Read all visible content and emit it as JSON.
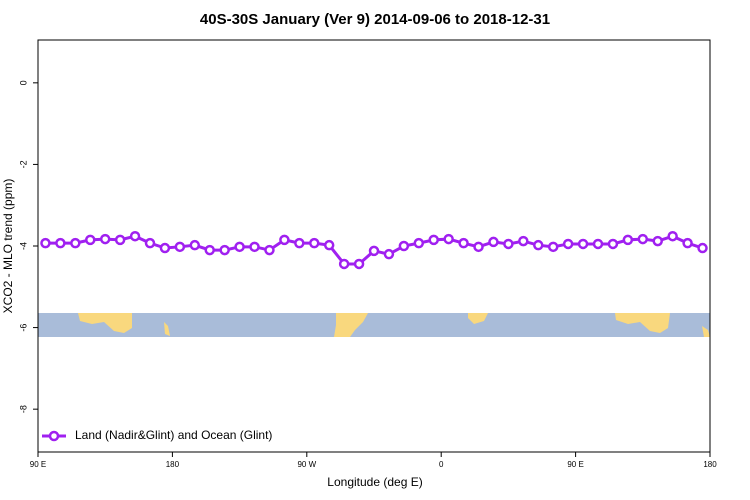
{
  "chart_data": {
    "type": "line",
    "title": "40S-30S January (Ver 9)   2014-09-06 to 2018-12-31",
    "x_label": "Longitude (deg E)",
    "y_label": "XCO2 - MLO trend (ppm)",
    "x": [
      95,
      105,
      115,
      125,
      135,
      145,
      155,
      165,
      175,
      185,
      195,
      205,
      215,
      225,
      235,
      245,
      255,
      265,
      275,
      285,
      295,
      305,
      315,
      325,
      335,
      345,
      355,
      365,
      375,
      385,
      395,
      405,
      415,
      425,
      435,
      445,
      455,
      465,
      475,
      485,
      495,
      505,
      515,
      525,
      535
    ],
    "series": [
      {
        "name": "Land (Nadir&Glint) and Ocean (Glint)",
        "color": "#a020f0",
        "values": [
          -3.93,
          -3.93,
          -3.93,
          -3.85,
          -3.83,
          -3.85,
          -3.76,
          -3.93,
          -4.05,
          -4.02,
          -3.98,
          -4.1,
          -4.1,
          -4.02,
          -4.02,
          -4.1,
          -3.85,
          -3.93,
          -3.93,
          -3.98,
          -4.44,
          -4.44,
          -4.12,
          -4.2,
          -4.0,
          -3.93,
          -3.85,
          -3.83,
          -3.93,
          -4.02,
          -3.9,
          -3.95,
          -3.88,
          -3.98,
          -4.02,
          -3.95,
          -3.95,
          -3.95,
          -3.95,
          -3.85,
          -3.83,
          -3.88,
          -3.76,
          -3.93,
          -4.05
        ]
      }
    ],
    "xlim": [
      90,
      540
    ],
    "xticks": [
      {
        "value": 90,
        "label": "90 E"
      },
      180,
      {
        "value": 270,
        "label": "90 W"
      },
      {
        "value": 360,
        "label": "0"
      },
      {
        "value": 450,
        "label": "90 E"
      },
      {
        "value": 540,
        "label": "180"
      }
    ],
    "ylim": [
      -9.05,
      1.05
    ],
    "yticks": [
      0,
      -2,
      -4,
      -6,
      -8
    ],
    "legend": "bottom-left"
  }
}
